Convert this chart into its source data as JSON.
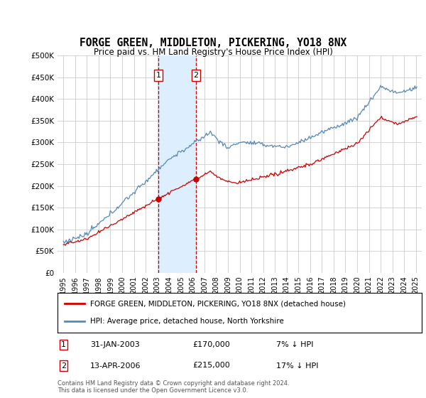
{
  "title": "FORGE GREEN, MIDDLETON, PICKERING, YO18 8NX",
  "subtitle": "Price paid vs. HM Land Registry's House Price Index (HPI)",
  "legend_line1": "FORGE GREEN, MIDDLETON, PICKERING, YO18 8NX (detached house)",
  "legend_line2": "HPI: Average price, detached house, North Yorkshire",
  "transaction1_label": "1",
  "transaction1_date": "31-JAN-2003",
  "transaction1_price": 170000,
  "transaction1_pct": "7% ↓ HPI",
  "transaction1_year": 2003.08,
  "transaction2_label": "2",
  "transaction2_date": "13-APR-2006",
  "transaction2_price": 215000,
  "transaction2_pct": "17% ↓ HPI",
  "transaction2_year": 2006.29,
  "footer1": "Contains HM Land Registry data © Crown copyright and database right 2024.",
  "footer2": "This data is licensed under the Open Government Licence v3.0.",
  "hpi_color": "#5588bb",
  "price_color": "#cc0000",
  "annotation_box_color": "#cc0000",
  "shade_color": "#ddeeff",
  "ylim": [
    0,
    500000
  ],
  "yticks": [
    0,
    50000,
    100000,
    150000,
    200000,
    250000,
    300000,
    350000,
    400000,
    450000,
    500000
  ],
  "xlim_start": 1994.5,
  "xlim_end": 2025.5,
  "background_color": "#ffffff",
  "grid_color": "#cccccc"
}
